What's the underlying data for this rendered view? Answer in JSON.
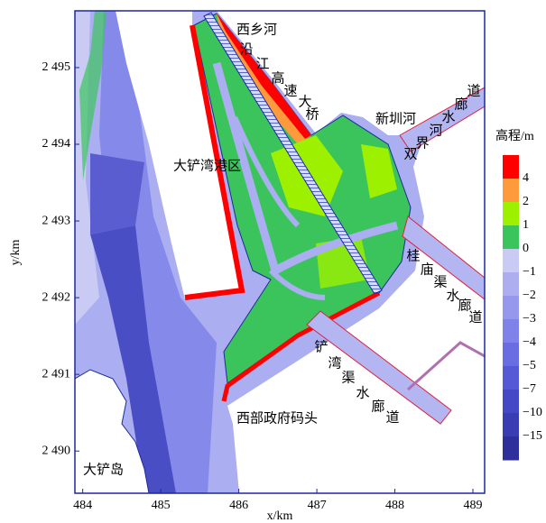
{
  "map": {
    "xlabel": "x/km",
    "ylabel": "y/km",
    "xlim": [
      483.9,
      489.15
    ],
    "ylim": [
      2489.45,
      2495.74
    ],
    "xticks": [
      484,
      485,
      486,
      487,
      488,
      489
    ],
    "yticks": [
      {
        "value": 2490,
        "label": "2 490"
      },
      {
        "value": 2491,
        "label": "2 491"
      },
      {
        "value": 2492,
        "label": "2 492"
      },
      {
        "value": 2493,
        "label": "2 493"
      },
      {
        "value": 2494,
        "label": "2 494"
      },
      {
        "value": 2495,
        "label": "2 495"
      }
    ],
    "colorbar": {
      "title": "高程/m",
      "ticks": [
        4,
        2,
        1,
        0,
        {
          "value": -1,
          "label": "−1"
        },
        {
          "value": -2,
          "label": "−2"
        },
        {
          "value": -3,
          "label": "−3"
        },
        {
          "value": -4,
          "label": "−4"
        },
        {
          "value": -5,
          "label": "−5"
        },
        {
          "value": -7,
          "label": "−7"
        },
        {
          "value": -10,
          "label": "−10"
        },
        {
          "value": -15,
          "label": "−15"
        }
      ],
      "colors": [
        "#ff0000",
        "#ff9a3c",
        "#9cf000",
        "#3cc45c",
        "#c9cbf4",
        "#acaef0",
        "#9598ec",
        "#7f82e8",
        "#6a6de2",
        "#5659d6",
        "#4548c6",
        "#3a3cb4",
        "#2f2f9c"
      ]
    },
    "labels": {
      "xixiang": "西乡河",
      "port": "大铲湾港区",
      "island": "大铲岛",
      "pier": "西部政府码头",
      "xinzhen": "新圳河"
    },
    "vertical_labels": [
      {
        "chars": [
          "沿",
          "江",
          "高",
          "速",
          "大",
          "桥"
        ]
      },
      {
        "chars": [
          "双",
          "界",
          "河",
          "水",
          "廊",
          "道"
        ]
      },
      {
        "chars": [
          "桂",
          "庙",
          "渠",
          "水",
          "廊",
          "道"
        ]
      },
      {
        "chars": [
          "铲",
          "湾",
          "渠",
          "水",
          "廊",
          "道"
        ]
      }
    ]
  }
}
